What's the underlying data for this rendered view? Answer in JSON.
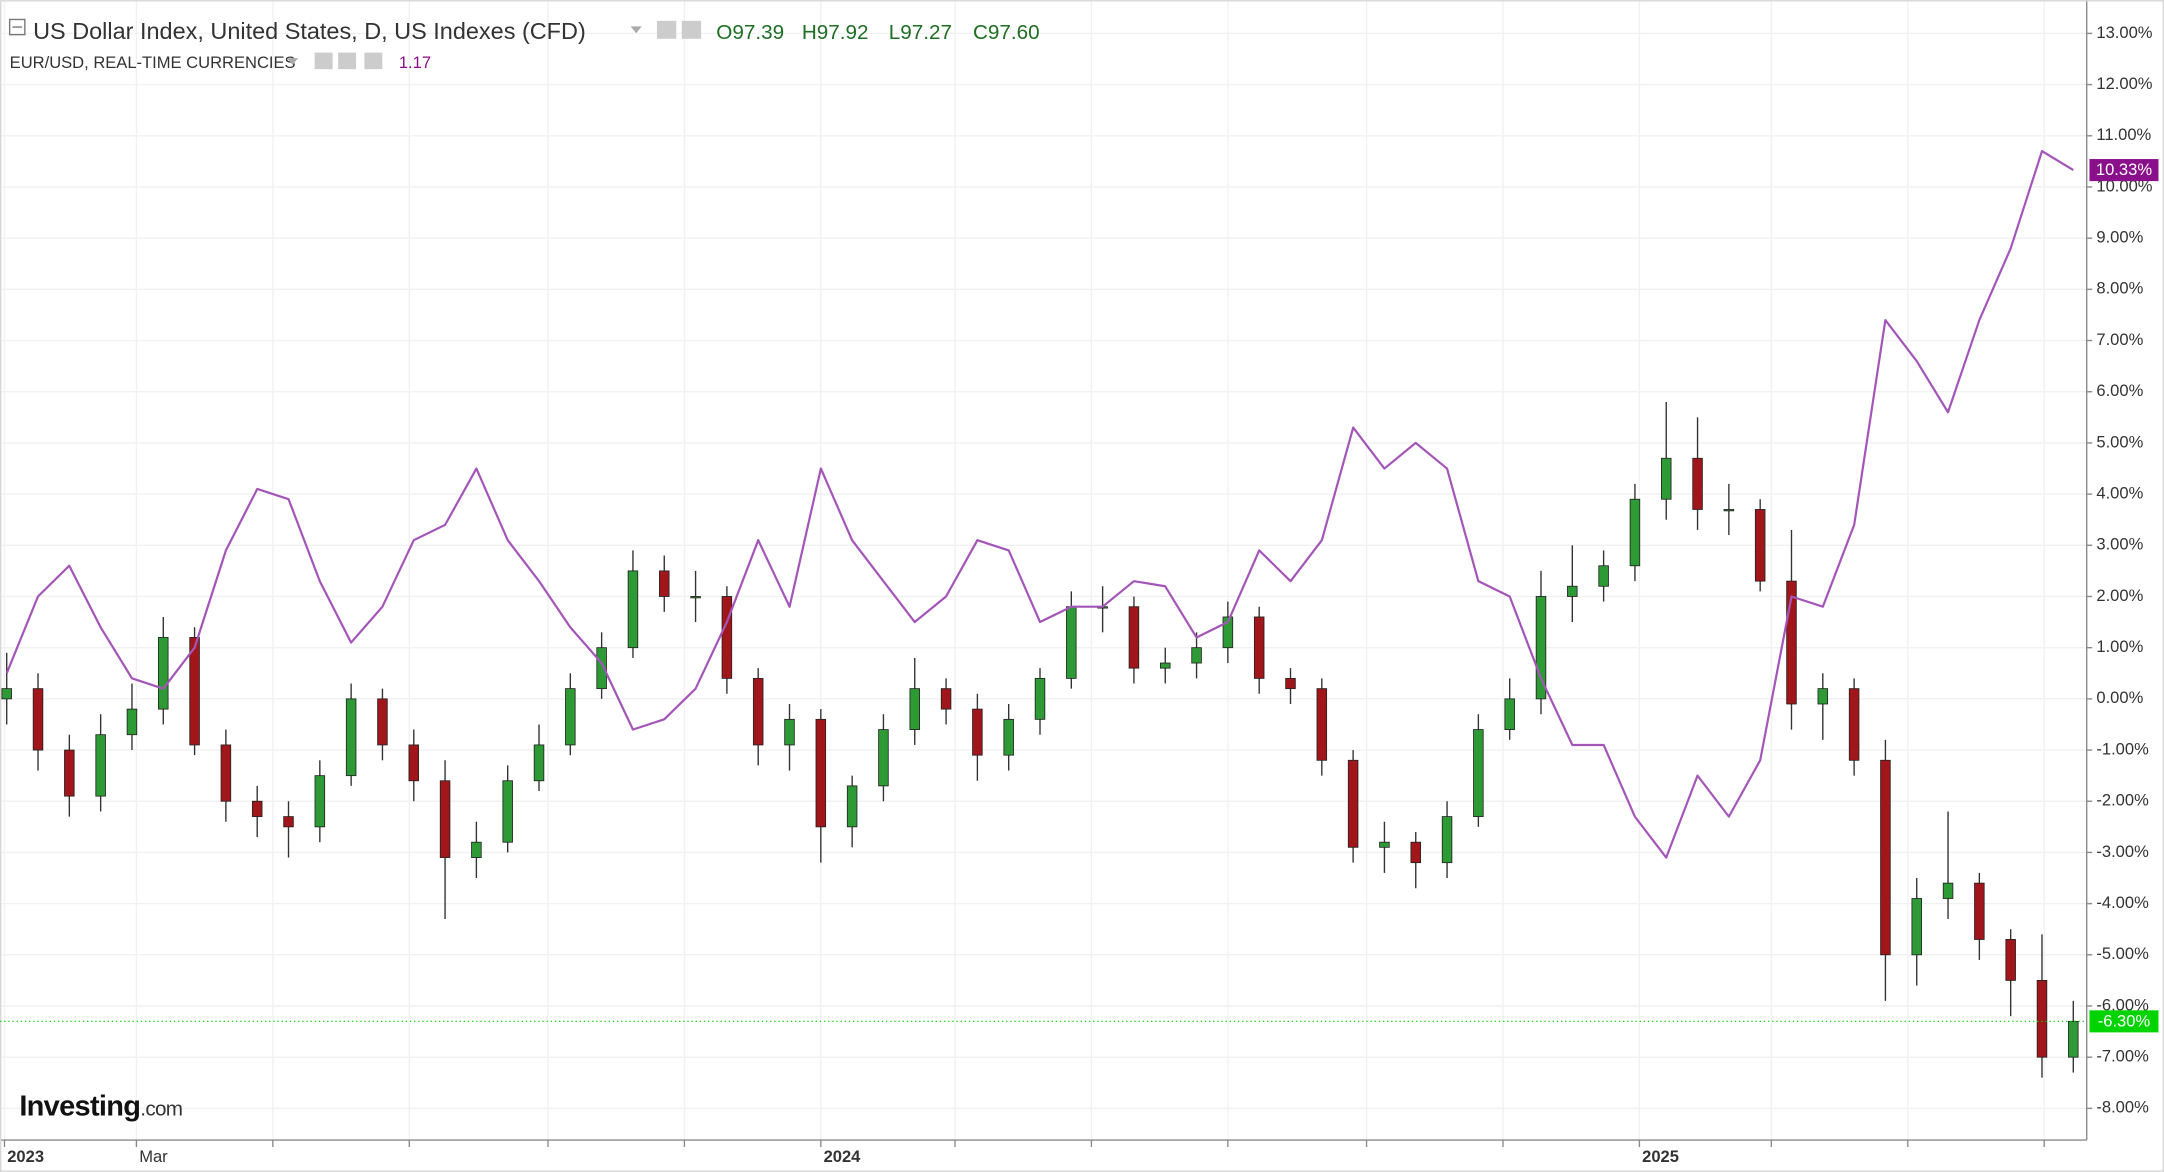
{
  "chart_data": {
    "type": "candlestick",
    "title": "US Dollar Index, United States, D, US Indexes (CFD)",
    "header_values": [
      {
        "prefix": "O",
        "value": 97.39,
        "label": "97.39"
      },
      {
        "prefix": "H",
        "value": 97.92,
        "label": "97.92"
      },
      {
        "prefix": "L",
        "value": 97.27,
        "label": "97.27"
      },
      {
        "prefix": "C",
        "value": 97.6,
        "label": "97.60"
      }
    ],
    "logo": {
      "name": "Investing",
      "suffix": ".com"
    },
    "x": [
      "2023-01-02",
      "2023-01-16",
      "2023-01-30",
      "2023-02-13",
      "2023-02-27",
      "2023-03-13",
      "2023-03-27",
      "2023-04-10",
      "2023-04-24",
      "2023-05-08",
      "2023-05-22",
      "2023-06-05",
      "2023-06-19",
      "2023-07-03",
      "2023-07-17",
      "2023-07-31",
      "2023-08-14",
      "2023-08-28",
      "2023-09-11",
      "2023-09-25",
      "2023-10-09",
      "2023-10-23",
      "2023-11-06",
      "2023-11-20",
      "2023-12-04",
      "2023-12-18",
      "2024-01-01",
      "2024-01-15",
      "2024-01-29",
      "2024-02-12",
      "2024-02-26",
      "2024-03-11",
      "2024-03-25",
      "2024-04-08",
      "2024-04-22",
      "2024-05-06",
      "2024-05-20",
      "2024-06-03",
      "2024-06-17",
      "2024-07-01",
      "2024-07-15",
      "2024-07-29",
      "2024-08-12",
      "2024-08-26",
      "2024-09-09",
      "2024-09-23",
      "2024-10-07",
      "2024-10-21",
      "2024-11-04",
      "2024-11-18",
      "2024-12-02",
      "2024-12-16",
      "2024-12-30",
      "2025-01-13",
      "2025-01-27",
      "2025-02-10",
      "2025-02-24",
      "2025-03-10",
      "2025-03-24",
      "2025-04-07",
      "2025-04-21",
      "2025-05-05",
      "2025-05-19",
      "2025-06-02",
      "2025-06-16",
      "2025-06-30",
      "2025-07-14"
    ],
    "candles": {
      "name": "US Dollar Index, United States, D, US Indexes (CFD)",
      "up_color": "#2e9a36",
      "down_color": "#a0161a",
      "tag_color": "#00d400",
      "last_label": "-6.30%",
      "open": [
        0.0,
        0.2,
        -1.0,
        -1.9,
        -0.7,
        -0.2,
        1.2,
        -0.9,
        -2.0,
        -2.3,
        -2.5,
        -1.5,
        0.0,
        -0.9,
        -1.6,
        -3.1,
        -2.8,
        -1.6,
        -0.9,
        0.2,
        1.0,
        2.5,
        2.0,
        2.0,
        0.4,
        -0.9,
        -0.4,
        -2.5,
        -1.7,
        -0.6,
        0.2,
        -0.2,
        -1.1,
        -0.4,
        0.4,
        1.8,
        1.8,
        0.6,
        0.7,
        1.0,
        1.6,
        0.4,
        0.2,
        -1.2,
        -2.9,
        -2.8,
        -3.2,
        -2.3,
        -0.6,
        0.0,
        2.0,
        2.2,
        2.6,
        3.9,
        4.7,
        3.7,
        3.7,
        2.3,
        -0.1,
        0.2,
        -1.2,
        -5.0,
        -3.9,
        -3.6,
        -4.7,
        -5.5,
        -7.0
      ],
      "high": [
        0.9,
        0.5,
        -0.7,
        -0.3,
        0.3,
        1.6,
        1.4,
        -0.6,
        -1.7,
        -2.0,
        -1.2,
        0.3,
        0.2,
        -0.6,
        -1.2,
        -2.4,
        -1.3,
        -0.5,
        0.5,
        1.3,
        2.9,
        2.8,
        2.5,
        2.2,
        0.6,
        -0.1,
        -0.2,
        -1.5,
        -0.3,
        0.8,
        0.4,
        0.1,
        -0.1,
        0.6,
        2.1,
        2.2,
        2.0,
        1.0,
        1.3,
        1.9,
        1.8,
        0.6,
        0.4,
        -1.0,
        -2.4,
        -2.6,
        -2.0,
        -0.3,
        0.4,
        2.5,
        3.0,
        2.9,
        4.2,
        5.8,
        5.5,
        4.2,
        3.9,
        3.3,
        0.5,
        0.4,
        -0.8,
        -3.5,
        -2.2,
        -3.4,
        -4.5,
        -4.6,
        -5.9
      ],
      "low": [
        -0.5,
        -1.4,
        -2.3,
        -2.2,
        -1.0,
        -0.5,
        -1.1,
        -2.4,
        -2.7,
        -3.1,
        -2.8,
        -1.7,
        -1.2,
        -2.0,
        -4.3,
        -3.5,
        -3.0,
        -1.8,
        -1.1,
        0.0,
        0.8,
        1.7,
        1.5,
        0.1,
        -1.3,
        -1.4,
        -3.2,
        -2.9,
        -2.0,
        -0.9,
        -0.5,
        -1.6,
        -1.4,
        -0.7,
        0.2,
        1.3,
        0.3,
        0.3,
        0.4,
        0.7,
        0.1,
        -0.1,
        -1.5,
        -3.2,
        -3.4,
        -3.7,
        -3.5,
        -2.5,
        -0.8,
        -0.3,
        1.5,
        1.9,
        2.3,
        3.5,
        3.3,
        3.2,
        2.1,
        -0.6,
        -0.8,
        -1.5,
        -5.9,
        -5.6,
        -4.3,
        -5.1,
        -6.2,
        -7.4,
        -7.3
      ],
      "close": [
        0.2,
        -1.0,
        -1.9,
        -0.7,
        -0.2,
        1.2,
        -0.9,
        -2.0,
        -2.3,
        -2.5,
        -1.5,
        0.0,
        -0.9,
        -1.6,
        -3.1,
        -2.8,
        -1.6,
        -0.9,
        0.2,
        1.0,
        2.5,
        2.0,
        2.0,
        0.4,
        -0.9,
        -0.4,
        -2.5,
        -1.7,
        -0.6,
        0.2,
        -0.2,
        -1.1,
        -0.4,
        0.4,
        1.8,
        1.8,
        0.6,
        0.7,
        1.0,
        1.6,
        0.4,
        0.2,
        -1.2,
        -2.9,
        -2.8,
        -3.2,
        -2.3,
        -0.6,
        0.0,
        2.0,
        2.2,
        2.6,
        3.9,
        4.7,
        3.7,
        3.7,
        2.3,
        -0.1,
        0.2,
        -1.2,
        -5.0,
        -3.9,
        -3.6,
        -4.7,
        -5.5,
        -7.0,
        -6.3
      ]
    },
    "series": [
      {
        "name": "EUR/USD, REAL-TIME CURRENCIES",
        "color": "#a456b8",
        "tag_color": "#8a0f8a",
        "current_price": 1.17,
        "last_label": "10.33%",
        "values": [
          0.5,
          2.0,
          2.6,
          1.4,
          0.4,
          0.2,
          1.0,
          2.9,
          4.1,
          3.9,
          2.3,
          1.1,
          1.8,
          3.1,
          3.4,
          4.5,
          3.1,
          2.3,
          1.4,
          0.7,
          -0.6,
          -0.4,
          0.2,
          1.5,
          3.1,
          1.8,
          4.5,
          3.1,
          2.3,
          1.5,
          2.0,
          3.1,
          2.9,
          1.5,
          1.8,
          1.8,
          2.3,
          2.2,
          1.2,
          1.5,
          2.9,
          2.3,
          3.1,
          5.3,
          4.5,
          5.0,
          4.5,
          2.3,
          2.0,
          0.4,
          -0.9,
          -0.9,
          -2.3,
          -3.1,
          -1.5,
          -2.3,
          -1.2,
          2.0,
          1.8,
          3.4,
          7.4,
          6.6,
          5.6,
          7.4,
          8.8,
          10.7,
          10.33
        ]
      }
    ],
    "xlim": [
      "2022-12-30",
      "2025-07-20"
    ],
    "xticks": [
      {
        "value": "2023-01-01",
        "label": "2023"
      },
      {
        "value": "2023-03-01",
        "label": "Mar"
      },
      {
        "value": "2023-05-01",
        "label": null
      },
      {
        "value": "2023-07-01",
        "label": null
      },
      {
        "value": "2023-09-01",
        "label": null
      },
      {
        "value": "2023-11-01",
        "label": null
      },
      {
        "value": "2024-01-01",
        "label": "2024"
      },
      {
        "value": "2024-03-01",
        "label": null
      },
      {
        "value": "2024-05-01",
        "label": null
      },
      {
        "value": "2024-07-01",
        "label": null
      },
      {
        "value": "2024-09-01",
        "label": null
      },
      {
        "value": "2024-11-01",
        "label": null
      },
      {
        "value": "2025-01-01",
        "label": "2025"
      },
      {
        "value": "2025-03-01",
        "label": null
      },
      {
        "value": "2025-05-01",
        "label": null
      },
      {
        "value": "2025-07-01",
        "label": null
      }
    ],
    "ylim": [
      -8.62,
      13.65
    ],
    "yticks": [
      {
        "value": 13,
        "label": "13.00%"
      },
      {
        "value": 12,
        "label": "12.00%"
      },
      {
        "value": 11,
        "label": "11.00%"
      },
      {
        "value": 10,
        "label": "10.00%"
      },
      {
        "value": 9,
        "label": "9.00%"
      },
      {
        "value": 8,
        "label": "8.00%"
      },
      {
        "value": 7,
        "label": "7.00%"
      },
      {
        "value": 6,
        "label": "6.00%"
      },
      {
        "value": 5,
        "label": "5.00%"
      },
      {
        "value": 4,
        "label": "4.00%"
      },
      {
        "value": 3,
        "label": "3.00%"
      },
      {
        "value": 2,
        "label": "2.00%"
      },
      {
        "value": 1,
        "label": "1.00%"
      },
      {
        "value": 0,
        "label": "0.00%"
      },
      {
        "value": -1,
        "label": "-1.00%"
      },
      {
        "value": -2,
        "label": "-2.00%"
      },
      {
        "value": -3,
        "label": "-3.00%"
      },
      {
        "value": -4,
        "label": "-4.00%"
      },
      {
        "value": -5,
        "label": "-5.00%"
      },
      {
        "value": -6,
        "label": "-6.00%"
      },
      {
        "value": -7,
        "label": "-7.00%"
      },
      {
        "value": -8,
        "label": "-8.00%"
      }
    ],
    "grid": true
  }
}
